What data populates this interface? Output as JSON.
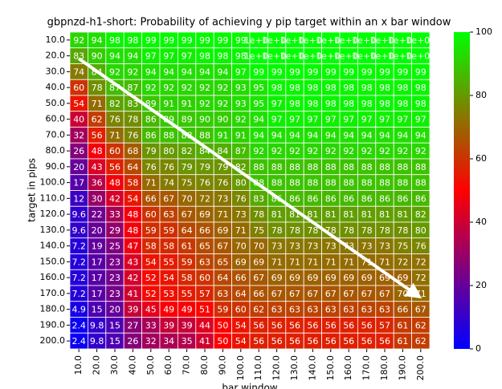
{
  "chart_data": {
    "type": "heatmap",
    "title": "gbpnzd-h1-short: Probability of achieving y pip target within an x bar window",
    "x_label": "bar window",
    "y_label": "target in pips",
    "x": [
      "10.0",
      "20.0",
      "30.0",
      "40.0",
      "50.0",
      "60.0",
      "70.0",
      "80.0",
      "90.0",
      "100.0",
      "110.0",
      "120.0",
      "130.0",
      "140.0",
      "150.0",
      "160.0",
      "170.0",
      "180.0",
      "190.0",
      "200.0"
    ],
    "y": [
      "10.0",
      "20.0",
      "30.0",
      "40.0",
      "50.0",
      "60.0",
      "70.0",
      "80.0",
      "90.0",
      "100.0",
      "110.0",
      "120.0",
      "130.0",
      "140.0",
      "150.0",
      "160.0",
      "170.0",
      "180.0",
      "190.0",
      "200.0"
    ],
    "values": [
      [
        92,
        94,
        98,
        98,
        99,
        99,
        99,
        99,
        99,
        99,
        100,
        100,
        100,
        100,
        100,
        100,
        100,
        100,
        100,
        100
      ],
      [
        83,
        90,
        94,
        94,
        97,
        97,
        97,
        98,
        98,
        98,
        100,
        100,
        100,
        100,
        100,
        100,
        100,
        100,
        100,
        100
      ],
      [
        74,
        84,
        92,
        92,
        94,
        94,
        94,
        94,
        94,
        97,
        99,
        99,
        99,
        99,
        99,
        99,
        99,
        99,
        99,
        99
      ],
      [
        60,
        78,
        87,
        87,
        92,
        92,
        92,
        92,
        92,
        93,
        95,
        98,
        98,
        98,
        98,
        98,
        98,
        98,
        98,
        98
      ],
      [
        54,
        71,
        82,
        83,
        89,
        91,
        91,
        92,
        92,
        93,
        95,
        97,
        98,
        98,
        98,
        98,
        98,
        98,
        98,
        98
      ],
      [
        40,
        62,
        76,
        78,
        86,
        89,
        89,
        90,
        90,
        92,
        94,
        97,
        97,
        97,
        97,
        97,
        97,
        97,
        97,
        97
      ],
      [
        32,
        56,
        71,
        76,
        86,
        88,
        88,
        88,
        91,
        91,
        94,
        94,
        94,
        94,
        94,
        94,
        94,
        94,
        94,
        94
      ],
      [
        26,
        48,
        60,
        68,
        79,
        80,
        82,
        84,
        84,
        87,
        92,
        92,
        92,
        92,
        92,
        92,
        92,
        92,
        92,
        92
      ],
      [
        20,
        43,
        56,
        64,
        76,
        76,
        79,
        79,
        79,
        82,
        88,
        88,
        88,
        88,
        88,
        88,
        88,
        88,
        88,
        88
      ],
      [
        17,
        36,
        48,
        58,
        71,
        74,
        75,
        76,
        76,
        80,
        88,
        88,
        88,
        88,
        88,
        88,
        88,
        88,
        88,
        88
      ],
      [
        12,
        30,
        42,
        54,
        66,
        67,
        70,
        72,
        73,
        76,
        83,
        86,
        86,
        86,
        86,
        86,
        86,
        86,
        86,
        86
      ],
      [
        9.6,
        22,
        33,
        48,
        60,
        63,
        67,
        69,
        71,
        73,
        78,
        81,
        81,
        81,
        81,
        81,
        81,
        81,
        81,
        82
      ],
      [
        9.6,
        20,
        29,
        48,
        59,
        59,
        64,
        66,
        69,
        71,
        75,
        78,
        78,
        78,
        78,
        78,
        78,
        78,
        78,
        80
      ],
      [
        7.2,
        19,
        25,
        47,
        58,
        58,
        61,
        65,
        67,
        70,
        70,
        73,
        73,
        73,
        73,
        73,
        73,
        73,
        75,
        76
      ],
      [
        7.2,
        17,
        23,
        43,
        54,
        55,
        59,
        63,
        65,
        69,
        69,
        71,
        71,
        71,
        71,
        71,
        71,
        71,
        72,
        72
      ],
      [
        7.2,
        17,
        23,
        42,
        52,
        54,
        58,
        60,
        64,
        66,
        67,
        69,
        69,
        69,
        69,
        69,
        69,
        69,
        69,
        72
      ],
      [
        7.2,
        17,
        23,
        41,
        52,
        53,
        55,
        57,
        63,
        64,
        66,
        67,
        67,
        67,
        67,
        67,
        67,
        67,
        70,
        71
      ],
      [
        4.9,
        15,
        20,
        39,
        45,
        49,
        49,
        51,
        59,
        60,
        62,
        63,
        63,
        63,
        63,
        63,
        63,
        63,
        66,
        67
      ],
      [
        2.4,
        9.8,
        15,
        27,
        33,
        39,
        39,
        44,
        50,
        54,
        56,
        56,
        56,
        56,
        56,
        56,
        56,
        57,
        61,
        62
      ],
      [
        2.4,
        9.8,
        15,
        26,
        32,
        34,
        35,
        41,
        50,
        54,
        56,
        56,
        56,
        56,
        56,
        56,
        56,
        56,
        61,
        62
      ]
    ],
    "value_labels": [
      [
        "92",
        "94",
        "98",
        "98",
        "99",
        "99",
        "99",
        "99",
        "99",
        "99",
        "1e+02",
        "1e+02",
        "1e+02",
        "1e+02",
        "1e+02",
        "1e+02",
        "1e+02",
        "1e+02",
        "1e+02",
        "1e+02"
      ],
      [
        "83",
        "90",
        "94",
        "94",
        "97",
        "97",
        "97",
        "98",
        "98",
        "98",
        "1e+02",
        "1e+02",
        "1e+02",
        "1e+02",
        "1e+02",
        "1e+02",
        "1e+02",
        "1e+02",
        "1e+02",
        "1e+02"
      ],
      [
        "74",
        "84",
        "92",
        "92",
        "94",
        "94",
        "94",
        "94",
        "94",
        "97",
        "99",
        "99",
        "99",
        "99",
        "99",
        "99",
        "99",
        "99",
        "99",
        "99"
      ],
      [
        "60",
        "78",
        "87",
        "87",
        "92",
        "92",
        "92",
        "92",
        "92",
        "93",
        "95",
        "98",
        "98",
        "98",
        "98",
        "98",
        "98",
        "98",
        "98",
        "98"
      ],
      [
        "54",
        "71",
        "82",
        "83",
        "89",
        "91",
        "91",
        "92",
        "92",
        "93",
        "95",
        "97",
        "98",
        "98",
        "98",
        "98",
        "98",
        "98",
        "98",
        "98"
      ],
      [
        "40",
        "62",
        "76",
        "78",
        "86",
        "89",
        "89",
        "90",
        "90",
        "92",
        "94",
        "97",
        "97",
        "97",
        "97",
        "97",
        "97",
        "97",
        "97",
        "97"
      ],
      [
        "32",
        "56",
        "71",
        "76",
        "86",
        "88",
        "88",
        "88",
        "91",
        "91",
        "94",
        "94",
        "94",
        "94",
        "94",
        "94",
        "94",
        "94",
        "94",
        "94"
      ],
      [
        "26",
        "48",
        "60",
        "68",
        "79",
        "80",
        "82",
        "84",
        "84",
        "87",
        "92",
        "92",
        "92",
        "92",
        "92",
        "92",
        "92",
        "92",
        "92",
        "92"
      ],
      [
        "20",
        "43",
        "56",
        "64",
        "76",
        "76",
        "79",
        "79",
        "79",
        "82",
        "88",
        "88",
        "88",
        "88",
        "88",
        "88",
        "88",
        "88",
        "88",
        "88"
      ],
      [
        "17",
        "36",
        "48",
        "58",
        "71",
        "74",
        "75",
        "76",
        "76",
        "80",
        "88",
        "88",
        "88",
        "88",
        "88",
        "88",
        "88",
        "88",
        "88",
        "88"
      ],
      [
        "12",
        "30",
        "42",
        "54",
        "66",
        "67",
        "70",
        "72",
        "73",
        "76",
        "83",
        "86",
        "86",
        "86",
        "86",
        "86",
        "86",
        "86",
        "86",
        "86"
      ],
      [
        "9.6",
        "22",
        "33",
        "48",
        "60",
        "63",
        "67",
        "69",
        "71",
        "73",
        "78",
        "81",
        "81",
        "81",
        "81",
        "81",
        "81",
        "81",
        "81",
        "82"
      ],
      [
        "9.6",
        "20",
        "29",
        "48",
        "59",
        "59",
        "64",
        "66",
        "69",
        "71",
        "75",
        "78",
        "78",
        "78",
        "78",
        "78",
        "78",
        "78",
        "78",
        "80"
      ],
      [
        "7.2",
        "19",
        "25",
        "47",
        "58",
        "58",
        "61",
        "65",
        "67",
        "70",
        "70",
        "73",
        "73",
        "73",
        "73",
        "73",
        "73",
        "73",
        "75",
        "76"
      ],
      [
        "7.2",
        "17",
        "23",
        "43",
        "54",
        "55",
        "59",
        "63",
        "65",
        "69",
        "69",
        "71",
        "71",
        "71",
        "71",
        "71",
        "71",
        "71",
        "72",
        "72"
      ],
      [
        "7.2",
        "17",
        "23",
        "42",
        "52",
        "54",
        "58",
        "60",
        "64",
        "66",
        "67",
        "69",
        "69",
        "69",
        "69",
        "69",
        "69",
        "69",
        "69",
        "72"
      ],
      [
        "7.2",
        "17",
        "23",
        "41",
        "52",
        "53",
        "55",
        "57",
        "63",
        "64",
        "66",
        "67",
        "67",
        "67",
        "67",
        "67",
        "67",
        "67",
        "70",
        "71"
      ],
      [
        "4.9",
        "15",
        "20",
        "39",
        "45",
        "49",
        "49",
        "51",
        "59",
        "60",
        "62",
        "63",
        "63",
        "63",
        "63",
        "63",
        "63",
        "63",
        "66",
        "67"
      ],
      [
        "2.4",
        "9.8",
        "15",
        "27",
        "33",
        "39",
        "39",
        "44",
        "50",
        "54",
        "56",
        "56",
        "56",
        "56",
        "56",
        "56",
        "56",
        "57",
        "61",
        "62"
      ],
      [
        "2.4",
        "9.8",
        "15",
        "26",
        "32",
        "34",
        "35",
        "41",
        "50",
        "54",
        "56",
        "56",
        "56",
        "56",
        "56",
        "56",
        "56",
        "56",
        "61",
        "62"
      ]
    ],
    "colors": [
      "#0000ff",
      "#ff0000",
      "#00ff00"
    ],
    "clim": [
      0,
      100
    ],
    "cticks": [
      0,
      20,
      40,
      60,
      80,
      100
    ]
  }
}
